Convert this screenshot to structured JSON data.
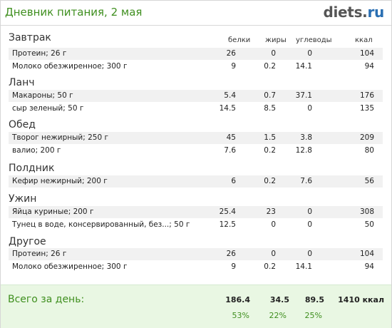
{
  "header": {
    "title": "Дневник питания, 2 мая",
    "logo_main": "diets",
    "logo_dot": ".",
    "logo_tld": "ru"
  },
  "columns": {
    "protein": "белки",
    "fat": "жиры",
    "carbs": "углеводы",
    "kcal": "ккал"
  },
  "meals": [
    {
      "title": "Завтрак",
      "items": [
        {
          "name": "Протеин; 26 г",
          "protein": "26",
          "fat": "0",
          "carbs": "0",
          "kcal": "104"
        },
        {
          "name": "Молоко обезжиренное; 300 г",
          "protein": "9",
          "fat": "0.2",
          "carbs": "14.1",
          "kcal": "94"
        }
      ]
    },
    {
      "title": "Ланч",
      "items": [
        {
          "name": "Макароны; 50 г",
          "protein": "5.4",
          "fat": "0.7",
          "carbs": "37.1",
          "kcal": "176"
        },
        {
          "name": "сыр  зеленый; 50 г",
          "protein": "14.5",
          "fat": "8.5",
          "carbs": "0",
          "kcal": "135"
        }
      ]
    },
    {
      "title": "Обед",
      "items": [
        {
          "name": "Творог нежирный; 250 г",
          "protein": "45",
          "fat": "1.5",
          "carbs": "3.8",
          "kcal": "209"
        },
        {
          "name": "валио; 200 г",
          "protein": "7.6",
          "fat": "0.2",
          "carbs": "12.8",
          "kcal": "80"
        }
      ]
    },
    {
      "title": "Полдник",
      "items": [
        {
          "name": "Кефир нежирный; 200 г",
          "protein": "6",
          "fat": "0.2",
          "carbs": "7.6",
          "kcal": "56"
        }
      ]
    },
    {
      "title": "Ужин",
      "items": [
        {
          "name": "Яйца куриные; 200 г",
          "protein": "25.4",
          "fat": "23",
          "carbs": "0",
          "kcal": "308"
        },
        {
          "name": "Тунец в воде, консервированный, без...; 50 г",
          "protein": "12.5",
          "fat": "0",
          "carbs": "0",
          "kcal": "50"
        }
      ]
    },
    {
      "title": "Другое",
      "items": [
        {
          "name": "Протеин; 26 г",
          "protein": "26",
          "fat": "0",
          "carbs": "0",
          "kcal": "104"
        },
        {
          "name": "Молоко обезжиренное; 300 г",
          "protein": "9",
          "fat": "0.2",
          "carbs": "14.1",
          "kcal": "94"
        }
      ]
    }
  ],
  "totals": {
    "label": "Всего за день:",
    "protein": "186.4",
    "fat": "34.5",
    "carbs": "89.5",
    "kcal": "1410 ккал",
    "protein_pct": "53%",
    "fat_pct": "22%",
    "carbs_pct": "25%"
  },
  "colors": {
    "accent_green": "#3f8f1f",
    "row_bg": "#f1f1f1",
    "footer_bg": "#e9f7e3",
    "tld_blue": "#2a6fb3"
  }
}
